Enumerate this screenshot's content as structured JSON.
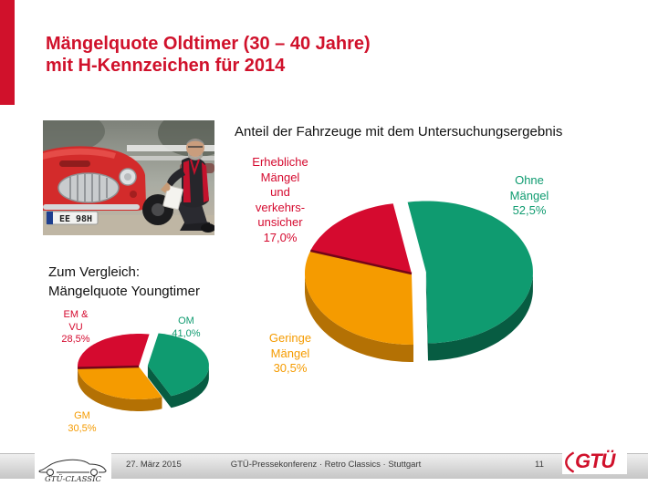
{
  "slide": {
    "title_line1": "Mängelquote Oldtimer (30 – 40 Jahre)",
    "title_line2": "mit H-Kennzeichen für 2014",
    "subtitle": "Anteil der Fahrzeuge mit dem Untersuchungsergebnis",
    "comparison_heading_line1": "Zum Vergleich:",
    "comparison_heading_line2": "Mängelquote Youngtimer"
  },
  "photo": {
    "license_plate": "EE 98H"
  },
  "footer": {
    "date": "27. März 2015",
    "event": "GTÜ-Pressekonferenz · Retro Classics · Stuttgart",
    "page_number": "11",
    "classic_logo_text": "GTÜ-CLASSIC",
    "brand_logo_text": "GTÜ"
  },
  "colors": {
    "accent_red": "#D0112B",
    "pie_green": "#0F9B70",
    "pie_green_dark": "#075C42",
    "pie_red": "#D50A2F",
    "pie_red_dark": "#740518",
    "pie_orange": "#F59B00",
    "pie_orange_dark": "#B47104"
  },
  "chart_data": [
    {
      "type": "pie",
      "title": "Anteil der Fahrzeuge mit dem Untersuchungsergebnis",
      "unit": "percent",
      "legend_position": "labels-around-pie",
      "slices": [
        {
          "label": "Ohne Mängel",
          "value": 52.5,
          "display": "52,5%",
          "color": "#0F9B70",
          "dark": "#075C42",
          "exploded": true,
          "dark_edge": false,
          "label_lines": [
            "Ohne",
            "Mängel",
            "52,5%"
          ]
        },
        {
          "label": "Geringe Mängel",
          "value": 30.5,
          "display": "30,5%",
          "color": "#F59B00",
          "dark": "#B47104",
          "exploded": false,
          "dark_edge": false,
          "label_lines": [
            "Geringe",
            "Mängel",
            "30,5%"
          ]
        },
        {
          "label": "Erhebliche Mängel und verkehrsunsicher",
          "value": 17.0,
          "display": "17,0%",
          "color": "#D50A2F",
          "dark": "#740518",
          "exploded": false,
          "dark_edge": true,
          "label_lines": [
            "Erhebliche",
            "Mängel",
            "und",
            "verkehrs-",
            "unsicher",
            "17,0%"
          ]
        }
      ]
    },
    {
      "type": "pie",
      "title": "Mängelquote Youngtimer",
      "unit": "percent",
      "legend_position": "labels-around-pie",
      "slices": [
        {
          "label": "OM",
          "value": 41.0,
          "display": "41,0%",
          "color": "#0F9B70",
          "dark": "#075C42",
          "exploded": true,
          "dark_edge": false,
          "label_lines": [
            "OM",
            "41,0%"
          ]
        },
        {
          "label": "GM",
          "value": 30.5,
          "display": "30,5%",
          "color": "#F59B00",
          "dark": "#B47104",
          "exploded": false,
          "dark_edge": false,
          "label_lines": [
            "GM",
            "30,5%"
          ]
        },
        {
          "label": "EM & VU",
          "value": 28.5,
          "display": "28,5%",
          "color": "#D50A2F",
          "dark": "#740518",
          "exploded": false,
          "dark_edge": true,
          "label_lines": [
            "EM &",
            "VU",
            "28,5%"
          ]
        }
      ]
    }
  ]
}
